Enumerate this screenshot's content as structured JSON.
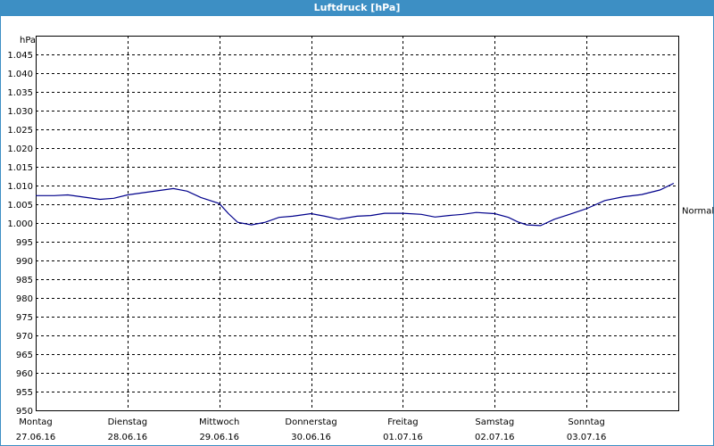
{
  "window": {
    "title": "Luftdruck [hPa]"
  },
  "chart_data": {
    "type": "line",
    "title": "Luftdruck [hPa]",
    "ylabel": "hPa",
    "xlabel": "",
    "ylim": [
      950,
      1050
    ],
    "yticks": [
      "1.045",
      "1.040",
      "1.035",
      "1.030",
      "1.025",
      "1.020",
      "1.015",
      "1.010",
      "1.005",
      "1.000",
      "995",
      "990",
      "985",
      "980",
      "975",
      "970",
      "965",
      "960",
      "955",
      "950"
    ],
    "ytick_values": [
      1045,
      1040,
      1035,
      1030,
      1025,
      1020,
      1015,
      1010,
      1005,
      1000,
      995,
      990,
      985,
      980,
      975,
      970,
      965,
      960,
      955,
      950
    ],
    "days": [
      {
        "weekday": "Montag",
        "date": "27.06.16"
      },
      {
        "weekday": "Dienstag",
        "date": "28.06.16"
      },
      {
        "weekday": "Mittwoch",
        "date": "29.06.16"
      },
      {
        "weekday": "Donnerstag",
        "date": "30.06.16"
      },
      {
        "weekday": "Freitag",
        "date": "01.07.16"
      },
      {
        "weekday": "Samstag",
        "date": "02.07.16"
      },
      {
        "weekday": "Sonntag",
        "date": "03.07.16"
      }
    ],
    "reference_line": {
      "label": "Normal",
      "value": 1003.5
    },
    "grid": true,
    "line_color": "#00008b",
    "series": [
      {
        "x": [
          0.0,
          0.2,
          0.35,
          0.5,
          0.7,
          0.85,
          1.0,
          1.2,
          1.35,
          1.5,
          1.65,
          1.8,
          2.0,
          2.1,
          2.2,
          2.35,
          2.5,
          2.65,
          2.8,
          3.0,
          3.15,
          3.3,
          3.5,
          3.65,
          3.8,
          4.0,
          4.2,
          4.35,
          4.5,
          4.65,
          4.8,
          5.0,
          5.15,
          5.25,
          5.35,
          5.5,
          5.65,
          5.8,
          6.0,
          6.2,
          6.4,
          6.6,
          6.8,
          6.95
        ],
        "y": [
          1007.3,
          1007.3,
          1007.5,
          1007.0,
          1006.3,
          1006.6,
          1007.5,
          1008.2,
          1008.7,
          1009.2,
          1008.5,
          1006.8,
          1005.2,
          1002.5,
          1000.2,
          999.5,
          1000.2,
          1001.5,
          1001.8,
          1002.5,
          1001.8,
          1001.0,
          1001.8,
          1002.0,
          1002.6,
          1002.6,
          1002.3,
          1001.6,
          1002.0,
          1002.3,
          1002.8,
          1002.5,
          1001.5,
          1000.3,
          999.5,
          999.3,
          1001.0,
          1002.2,
          1003.8,
          1006.0,
          1007.0,
          1007.6,
          1008.8,
          1010.6
        ]
      }
    ]
  }
}
